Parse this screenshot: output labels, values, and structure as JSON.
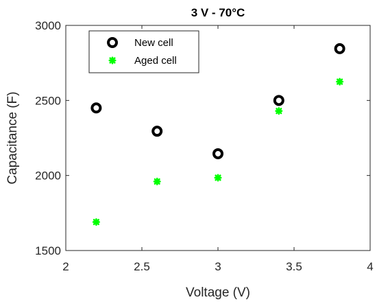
{
  "chart_data": {
    "type": "scatter",
    "title": "3 V - 70°C",
    "xlabel": "Voltage (V)",
    "ylabel": "Capacitance (F)",
    "xlim": [
      2,
      4
    ],
    "ylim": [
      1500,
      3000
    ],
    "xticks": [
      "2",
      "2.5",
      "3",
      "3.5",
      "4"
    ],
    "yticks": [
      "1500",
      "2000",
      "2500",
      "3000"
    ],
    "grid": false,
    "legend_position": "top-left",
    "series": [
      {
        "name": "New cell",
        "marker": "circle",
        "color": "#000000",
        "x": [
          2.2,
          2.6,
          3.0,
          3.4,
          3.8
        ],
        "y": [
          2450,
          2295,
          2145,
          2500,
          2845
        ]
      },
      {
        "name": "Aged cell",
        "marker": "asterisk",
        "color": "#00ff00",
        "x": [
          2.2,
          2.6,
          3.0,
          3.4,
          3.8
        ],
        "y": [
          1690,
          1960,
          1985,
          2430,
          2625
        ]
      }
    ]
  }
}
